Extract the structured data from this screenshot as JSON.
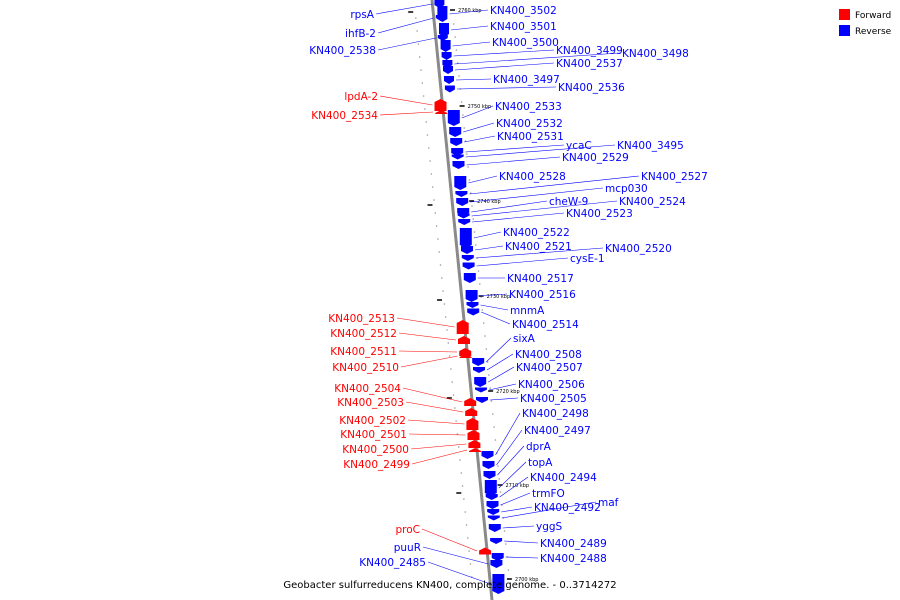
{
  "colors": {
    "forward": "#ff0000",
    "reverse": "#0000ff",
    "backbone": "#8a8a8a"
  },
  "legend": {
    "forward_label": "Forward",
    "reverse_label": "Reverse"
  },
  "caption": "Geobacter sulfurreducens KN400, complete genome. - 0..3714272",
  "ticks": [
    "2760 kbp",
    "2750 kbp",
    "2740 kbp",
    "2730 kbp",
    "2720 kbp",
    "2710 kbp",
    "2700 kbp"
  ],
  "reverse_genes": [
    "KN400_3502",
    "KN400_3501",
    "KN400_3500",
    "KN400_3499",
    "KN400_3498",
    "KN400_2537",
    "KN400_3497",
    "KN400_2536",
    "KN400_2533",
    "KN400_2532",
    "KN400_2531",
    "ycaC",
    "KN400_3495",
    "KN400_2529",
    "KN400_2528",
    "KN400_2527",
    "mcp030",
    "cheW-9",
    "KN400_2524",
    "KN400_2523",
    "KN400_2522",
    "KN400_2521",
    "KN400_2520",
    "cysE-1",
    "KN400_2517",
    "KN400_2516",
    "mnmA",
    "KN400_2514",
    "sixA",
    "KN400_2508",
    "KN400_2507",
    "KN400_2506",
    "KN400_2505",
    "KN400_2498",
    "KN400_2497",
    "dprA",
    "topA",
    "KN400_2494",
    "trmFO",
    "KN400_2492",
    "maf",
    "yggS",
    "KN400_2489",
    "KN400_2488",
    "rpsA",
    "ihfB-2",
    "KN400_2538",
    "puuR",
    "KN400_2485"
  ],
  "forward_genes": [
    "lpdA-2",
    "KN400_2534",
    "KN400_2513",
    "KN400_2512",
    "KN400_2511",
    "KN400_2510",
    "KN400_2504",
    "KN400_2503",
    "KN400_2502",
    "KN400_2501",
    "KN400_2500",
    "KN400_2499",
    "proC"
  ]
}
